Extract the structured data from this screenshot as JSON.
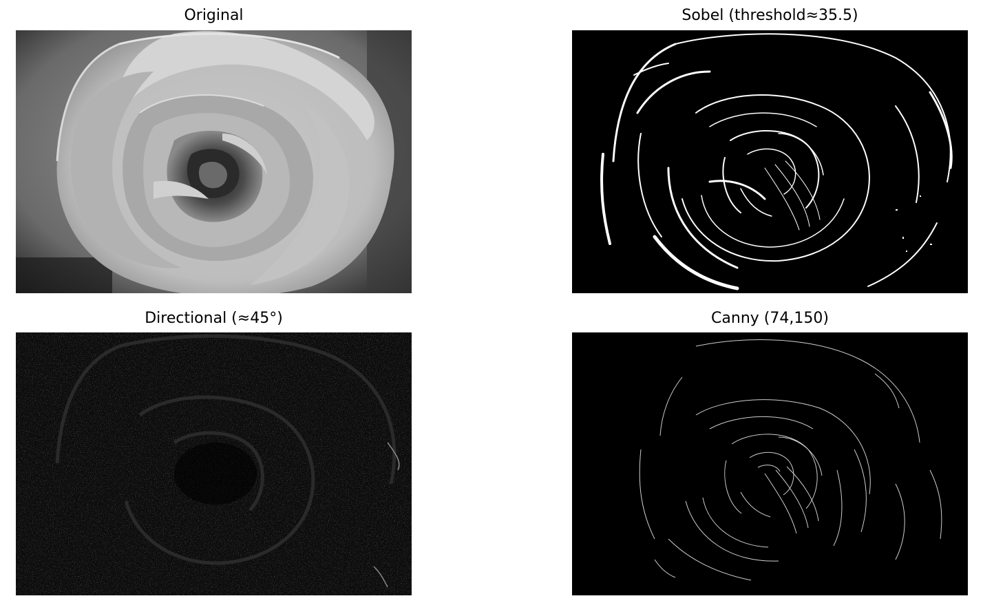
{
  "panels": [
    {
      "title": "Original",
      "image": "rose-grayscale-photo"
    },
    {
      "title": "Sobel (threshold≈35.5)",
      "image": "rose-sobel-edges"
    },
    {
      "title": "Directional (≈45°)",
      "image": "rose-directional-edges"
    },
    {
      "title": "Canny (74,150)",
      "image": "rose-canny-edges"
    }
  ]
}
